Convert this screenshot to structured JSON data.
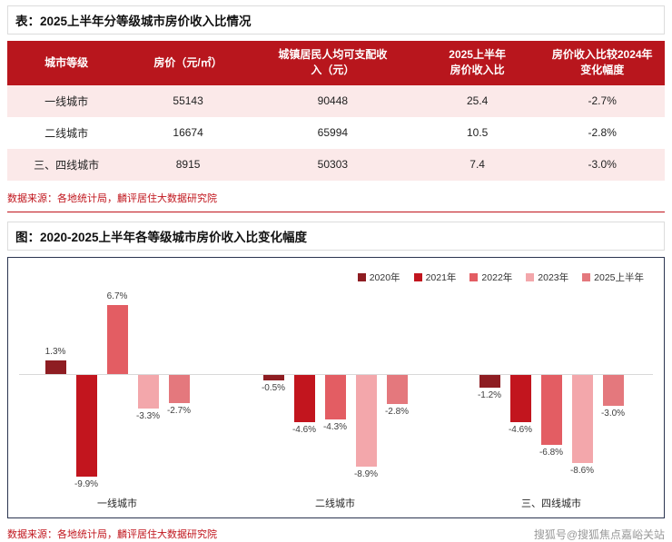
{
  "theme": {
    "header_bg": "#b8161d",
    "row_alt_bg": "#fbe9e9",
    "accent_red": "#c0151c",
    "chart_border": "#2b3550"
  },
  "table_section": {
    "title": "表：2025上半年分等级城市房价收入比情况",
    "headers": [
      "城市等级",
      "房价（元/㎡）",
      "城镇居民人均可支配收\n入（元）",
      "2025上半年\n房价收入比",
      "房价收入比较2024年\n变化幅度"
    ],
    "rows": [
      {
        "tier": "一线城市",
        "price": "55143",
        "income": "90448",
        "ratio": "25.4",
        "change": "-2.7%"
      },
      {
        "tier": "二线城市",
        "price": "16674",
        "income": "65994",
        "ratio": "10.5",
        "change": "-2.8%"
      },
      {
        "tier": "三、四线城市",
        "price": "8915",
        "income": "50303",
        "ratio": "7.4",
        "change": "-3.0%"
      }
    ],
    "source": "数据来源：各地统计局，麟评居住大数据研究院"
  },
  "chart_section": {
    "title": "图：2020-2025上半年各等级城市房价收入比变化幅度",
    "source": "数据来源：各地统计局，麟评居住大数据研究院"
  },
  "chart_data": {
    "type": "bar",
    "title": "2020-2025上半年各等级城市房价收入比变化幅度",
    "categories": [
      "一线城市",
      "二线城市",
      "三、四线城市"
    ],
    "series": [
      {
        "name": "2020年",
        "color": "#8e1d22",
        "values": [
          1.3,
          -0.5,
          -1.2
        ]
      },
      {
        "name": "2021年",
        "color": "#c2151e",
        "values": [
          -9.9,
          -4.6,
          -4.6
        ]
      },
      {
        "name": "2022年",
        "color": "#e35d63",
        "values": [
          6.7,
          -4.3,
          -6.8
        ]
      },
      {
        "name": "2023年",
        "color": "#f3a7ab",
        "values": [
          -3.3,
          -8.9,
          -8.6
        ]
      },
      {
        "name": "2025上半年",
        "color": "#e4787d",
        "values": [
          -2.7,
          -2.8,
          -3.0
        ]
      }
    ],
    "value_label_format": "percent_one_decimal",
    "ylim": [
      -11,
      8
    ],
    "xlabel": "",
    "ylabel": "",
    "grid": false,
    "legend_position": "top-right"
  },
  "watermark": "搜狐号@搜狐焦点嘉峪关站"
}
